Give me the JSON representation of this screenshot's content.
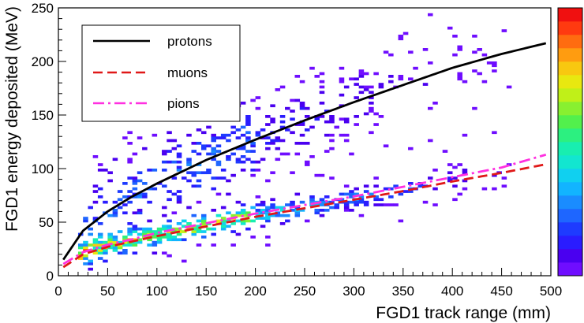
{
  "chart_data": {
    "type": "heatmap",
    "title": "",
    "xlabel": "FGD1 track range (mm)",
    "ylabel": "FGD1 energy deposited (MeV)",
    "xlim": [
      0,
      500
    ],
    "ylim": [
      0,
      250
    ],
    "x_ticks": [
      {
        "value": 0,
        "label": "0"
      },
      {
        "value": 50,
        "label": "50"
      },
      {
        "value": 100,
        "label": "100"
      },
      {
        "value": 150,
        "label": "150"
      },
      {
        "value": 200,
        "label": "200"
      },
      {
        "value": 250,
        "label": "250"
      },
      {
        "value": 300,
        "label": "300"
      },
      {
        "value": 350,
        "label": "350"
      },
      {
        "value": 400,
        "label": "400"
      },
      {
        "value": 450,
        "label": "450"
      },
      {
        "value": 500,
        "label": "500"
      }
    ],
    "y_ticks": [
      {
        "value": 0,
        "label": "0"
      },
      {
        "value": 50,
        "label": "50"
      },
      {
        "value": 100,
        "label": "100"
      },
      {
        "value": 150,
        "label": "150"
      },
      {
        "value": 200,
        "label": "200"
      },
      {
        "value": 250,
        "label": "250"
      }
    ],
    "grid": false,
    "legend_position": "top-left",
    "colorbar_position": "right",
    "colormap": [
      "#6f0dff",
      "#4a00f0",
      "#2a1cff",
      "#1e3bff",
      "#1e66ff",
      "#1a8cff",
      "#12b4ff",
      "#10d0f0",
      "#12e6d0",
      "#18eeb0",
      "#2cf080",
      "#52f04c",
      "#88f030",
      "#c0f018",
      "#e8e810",
      "#f8c810",
      "#ff9c10",
      "#ff6c10",
      "#ff3a10",
      "#f01010"
    ],
    "series": [
      {
        "name": "protons",
        "color": "#000000",
        "dash": "solid",
        "x": [
          5,
          25,
          50,
          75,
          100,
          150,
          200,
          250,
          300,
          350,
          400,
          450,
          495
        ],
        "y": [
          15,
          42,
          60,
          74,
          86,
          108,
          127,
          145,
          162,
          178,
          194,
          207,
          217
        ]
      },
      {
        "name": "muons",
        "color": "#e01818",
        "dash": "dashed",
        "x": [
          5,
          25,
          50,
          75,
          100,
          150,
          200,
          250,
          300,
          350,
          400,
          450,
          495
        ],
        "y": [
          8,
          20,
          27,
          32,
          37,
          46,
          55,
          63,
          71,
          79,
          88,
          96,
          104
        ]
      },
      {
        "name": "pions",
        "color": "#ff30e0",
        "dash": "dash-dot",
        "x": [
          5,
          25,
          50,
          75,
          100,
          150,
          200,
          250,
          300,
          350,
          400,
          450,
          495
        ],
        "y": [
          11,
          22,
          29,
          34,
          40,
          49,
          58,
          66,
          74,
          83,
          92,
          101,
          113
        ]
      }
    ]
  }
}
